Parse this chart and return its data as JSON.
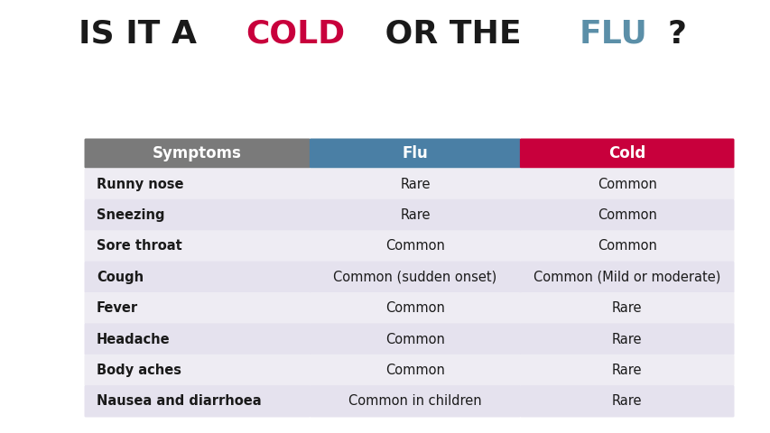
{
  "title_segments": [
    {
      "text": "IS IT A ",
      "color": "#1a1a1a"
    },
    {
      "text": "COLD",
      "color": "#c8003c"
    },
    {
      "text": " OR THE ",
      "color": "#1a1a1a"
    },
    {
      "text": "FLU",
      "color": "#5b8fa8"
    },
    {
      "text": "?",
      "color": "#1a1a1a"
    }
  ],
  "header_row": [
    "Symptoms",
    "Flu",
    "Cold"
  ],
  "header_colors": [
    "#7a7a7a",
    "#4a7fa5",
    "#c8003c"
  ],
  "header_text_color": "#ffffff",
  "rows": [
    [
      "Runny nose",
      "Rare",
      "Common"
    ],
    [
      "Sneezing",
      "Rare",
      "Common"
    ],
    [
      "Sore throat",
      "Common",
      "Common"
    ],
    [
      "Cough",
      "Common (sudden onset)",
      "Common (Mild or moderate)"
    ],
    [
      "Fever",
      "Common",
      "Rare"
    ],
    [
      "Headache",
      "Common",
      "Rare"
    ],
    [
      "Body aches",
      "Common",
      "Rare"
    ],
    [
      "Nausea and diarrhoea",
      "Common in children",
      "Rare"
    ]
  ],
  "row_bg_even": "#eeecf3",
  "row_bg_odd": "#e5e2ee",
  "background_color": "#ffffff",
  "title_fontsize": 26,
  "header_fontsize": 12,
  "row_fontsize": 10.5
}
